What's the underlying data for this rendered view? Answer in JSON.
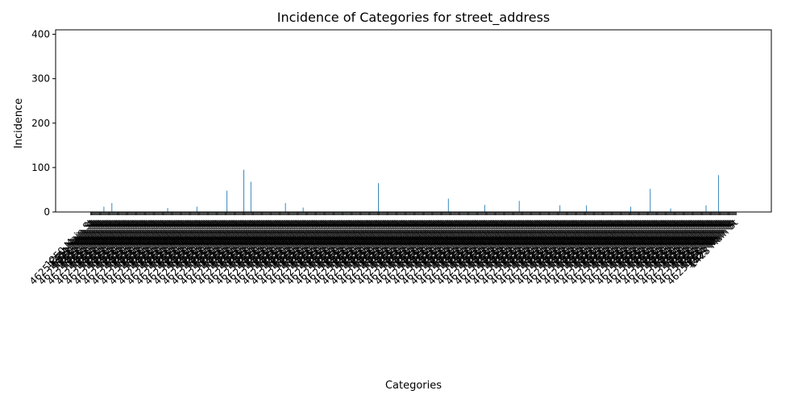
{
  "chart_data": {
    "type": "bar",
    "title": "Incidence of Categories for street_address",
    "xlabel": "Categories",
    "ylabel": "Incidence",
    "ylim": [
      0,
      410
    ],
    "yticks": [
      0,
      100,
      200,
      300,
      400
    ],
    "grid": false,
    "legend": "none",
    "bar_color": "#1f77b4",
    "category_count": 730,
    "visible_xtick_labels": [
      "1250 Main St",
      "1420 Main St",
      "4625 East Main St",
      "123 Main St",
      "1234 Main St",
      "1502 Main St",
      "1523 Main St",
      "1523 Martin Luther King Jr Hwy",
      "1423 Main St",
      "123 Valencia St"
    ],
    "peaks": [
      {
        "index": 154,
        "value": 48
      },
      {
        "index": 173,
        "value": 95
      },
      {
        "index": 181,
        "value": 68
      },
      {
        "index": 325,
        "value": 65
      },
      {
        "index": 404,
        "value": 30
      },
      {
        "index": 484,
        "value": 25
      },
      {
        "index": 632,
        "value": 52
      },
      {
        "index": 709,
        "value": 83
      },
      {
        "index": 24,
        "value": 20
      },
      {
        "index": 15,
        "value": 12
      },
      {
        "index": 220,
        "value": 20
      },
      {
        "index": 120,
        "value": 12
      },
      {
        "index": 445,
        "value": 16
      },
      {
        "index": 530,
        "value": 15
      },
      {
        "index": 560,
        "value": 15
      },
      {
        "index": 610,
        "value": 12
      },
      {
        "index": 695,
        "value": 15
      },
      {
        "index": 240,
        "value": 10
      },
      {
        "index": 87,
        "value": 9
      },
      {
        "index": 655,
        "value": 8
      }
    ]
  }
}
